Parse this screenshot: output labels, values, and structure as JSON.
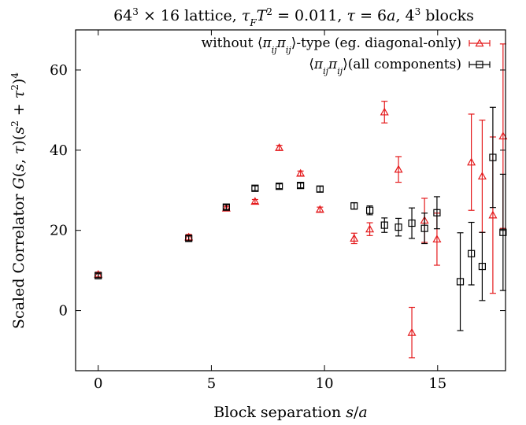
{
  "chart_data": {
    "type": "scatter",
    "title": "64³ × 16 lattice, τ_F T² = 0.011, τ = 6a, 4³ blocks",
    "xlabel": "Block separation s/a",
    "ylabel": "Scaled Correlator G(s,τ)(s² + τ²)⁴",
    "xlim": [
      -1,
      18
    ],
    "ylim": [
      -15,
      70
    ],
    "xticks": [
      0,
      5,
      10,
      15
    ],
    "yticks": [
      0,
      20,
      40,
      60
    ],
    "xtick_labels": [
      "0",
      "5",
      "10",
      "15"
    ],
    "ytick_labels": [
      "0",
      "20",
      "40",
      "60"
    ],
    "grid": false,
    "legend_position": "top-right",
    "series": [
      {
        "name": "without ⟨π_ij π_ij⟩-type (eg. diagonal-only)",
        "marker": "triangle",
        "color": "#e41a1c",
        "points": [
          {
            "x": 0,
            "y": 9.0,
            "err": 0.6
          },
          {
            "x": 4,
            "y": 18.3,
            "err": 0.7
          },
          {
            "x": 5.66,
            "y": 25.5,
            "err": 0.5
          },
          {
            "x": 6.93,
            "y": 27.2,
            "err": 0.5
          },
          {
            "x": 8,
            "y": 40.6,
            "err": 0.6
          },
          {
            "x": 8.94,
            "y": 34.2,
            "err": 0.6
          },
          {
            "x": 9.8,
            "y": 25.2,
            "err": 0.6
          },
          {
            "x": 11.31,
            "y": 18.0,
            "err": 1.3
          },
          {
            "x": 12,
            "y": 20.3,
            "err": 1.6
          },
          {
            "x": 12.65,
            "y": 49.5,
            "err": 2.7
          },
          {
            "x": 13.27,
            "y": 35.2,
            "err": 3.2
          },
          {
            "x": 13.86,
            "y": -5.5,
            "err": 6.3
          },
          {
            "x": 14.42,
            "y": 22.5,
            "err": 5.5
          },
          {
            "x": 14.97,
            "y": 17.8,
            "err": 6.5
          },
          {
            "x": 16.49,
            "y": 37.0,
            "err": 12.0
          },
          {
            "x": 16.97,
            "y": 33.5,
            "err": 14.0
          },
          {
            "x": 17.44,
            "y": 23.8,
            "err": 19.5
          },
          {
            "x": 17.89,
            "y": 43.5,
            "err": 23.0
          }
        ]
      },
      {
        "name": "⟨π_ij π_ij⟩(all components)",
        "marker": "square",
        "color": "#000000",
        "points": [
          {
            "x": 0,
            "y": 8.7,
            "err": 0.5
          },
          {
            "x": 4,
            "y": 18.0,
            "err": 0.6
          },
          {
            "x": 5.66,
            "y": 25.8,
            "err": 0.6
          },
          {
            "x": 6.93,
            "y": 30.5,
            "err": 0.6
          },
          {
            "x": 8,
            "y": 31.0,
            "err": 0.6
          },
          {
            "x": 8.94,
            "y": 31.2,
            "err": 0.6
          },
          {
            "x": 9.8,
            "y": 30.3,
            "err": 0.7
          },
          {
            "x": 11.31,
            "y": 26.1,
            "err": 0.8
          },
          {
            "x": 12,
            "y": 25.0,
            "err": 1.1
          },
          {
            "x": 12.65,
            "y": 21.3,
            "err": 1.8
          },
          {
            "x": 13.27,
            "y": 20.8,
            "err": 2.2
          },
          {
            "x": 13.86,
            "y": 21.8,
            "err": 3.8
          },
          {
            "x": 14.42,
            "y": 20.5,
            "err": 3.8
          },
          {
            "x": 14.97,
            "y": 24.4,
            "err": 4.0
          },
          {
            "x": 16.0,
            "y": 7.2,
            "err": 12.2
          },
          {
            "x": 16.49,
            "y": 14.2,
            "err": 7.8
          },
          {
            "x": 16.97,
            "y": 11.0,
            "err": 8.5
          },
          {
            "x": 17.44,
            "y": 38.2,
            "err": 12.5
          },
          {
            "x": 17.89,
            "y": 19.5,
            "err": 14.5
          }
        ]
      }
    ]
  }
}
